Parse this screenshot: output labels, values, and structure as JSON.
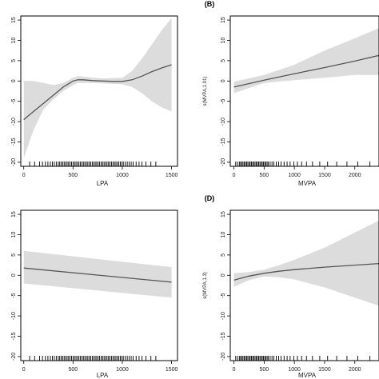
{
  "chart_data": [
    {
      "type": "line",
      "panel_label": "",
      "xlabel": "LPA",
      "ylabel": "",
      "xlim": [
        -30,
        1560
      ],
      "ylim": [
        -21,
        16
      ],
      "xticks": [
        0,
        500,
        1000,
        1500
      ],
      "yticks": [
        -20,
        -15,
        -10,
        -5,
        0,
        5,
        10,
        15
      ],
      "x": [
        0,
        100,
        200,
        300,
        400,
        500,
        550,
        600,
        700,
        800,
        900,
        1000,
        1100,
        1200,
        1300,
        1400,
        1500
      ],
      "y": [
        -9.5,
        -7.5,
        -5.5,
        -3.5,
        -1.5,
        0,
        0.3,
        0.3,
        0.1,
        0,
        -0.1,
        -0.1,
        0.3,
        1.2,
        2.3,
        3.2,
        4
      ],
      "lower": [
        -19,
        -12,
        -7,
        -4.5,
        -2.5,
        -1,
        -0.5,
        -0.5,
        -0.5,
        -0.6,
        -0.7,
        -0.8,
        -1.5,
        -3,
        -5,
        -6.5,
        -7.5
      ],
      "upper": [
        0,
        0,
        -0.5,
        -1,
        -0.5,
        0.8,
        1.2,
        1.1,
        0.8,
        0.6,
        0.7,
        0.8,
        2.5,
        5.5,
        9,
        12.5,
        15.5
      ],
      "rug": [
        60,
        110,
        160,
        190,
        220,
        245,
        270,
        290,
        310,
        330,
        350,
        365,
        380,
        395,
        410,
        425,
        440,
        455,
        470,
        485,
        500,
        515,
        530,
        545,
        560,
        575,
        590,
        605,
        620,
        635,
        650,
        665,
        680,
        695,
        710,
        725,
        740,
        755,
        770,
        785,
        800,
        815,
        830,
        845,
        860,
        875,
        890,
        905,
        920,
        935,
        950,
        965,
        980,
        995,
        1010,
        1030,
        1050,
        1070,
        1090,
        1110,
        1140,
        1170,
        1200,
        1240,
        1290,
        1340
      ]
    },
    {
      "type": "line",
      "panel_label": "(B)",
      "xlabel": "MVPA",
      "ylabel": "s(MVPA,1.01)",
      "xlim": [
        -60,
        2400
      ],
      "ylim": [
        -21,
        16
      ],
      "xticks": [
        0,
        500,
        1000,
        1500,
        2000
      ],
      "yticks": [
        -20,
        -15,
        -10,
        -5,
        0,
        5,
        10,
        15
      ],
      "x": [
        0,
        500,
        1000,
        1500,
        2000,
        2400
      ],
      "y": [
        -1.5,
        0.2,
        1.8,
        3.3,
        4.9,
        6.3
      ],
      "lower": [
        -3,
        -0.5,
        0.2,
        0.8,
        1.5,
        1.5
      ],
      "upper": [
        -0.2,
        1.5,
        4,
        7.5,
        10.5,
        13
      ],
      "rug": [
        30,
        60,
        90,
        110,
        130,
        150,
        170,
        190,
        210,
        230,
        250,
        270,
        290,
        310,
        330,
        350,
        370,
        390,
        410,
        430,
        450,
        470,
        490,
        510,
        530,
        550,
        570,
        600,
        630,
        660,
        700,
        740,
        780,
        830,
        880,
        930,
        990,
        1050,
        1120,
        1200,
        1300,
        1420,
        1550,
        1700,
        1870,
        2050,
        2250
      ]
    },
    {
      "type": "line",
      "panel_label": "",
      "xlabel": "LPA",
      "ylabel": "",
      "xlim": [
        -30,
        1560
      ],
      "ylim": [
        -21,
        16
      ],
      "xticks": [
        0,
        500,
        1000,
        1500
      ],
      "yticks": [
        -20,
        -15,
        -10,
        -5,
        0,
        5,
        10,
        15
      ],
      "x": [
        0,
        1500
      ],
      "y": [
        1.8,
        -1.7
      ],
      "lower": [
        -2,
        -5.5
      ],
      "upper": [
        6,
        2
      ],
      "rug": [
        60,
        110,
        160,
        190,
        220,
        245,
        270,
        290,
        310,
        330,
        350,
        365,
        380,
        395,
        410,
        425,
        440,
        455,
        470,
        485,
        500,
        515,
        530,
        545,
        560,
        575,
        590,
        605,
        620,
        635,
        650,
        665,
        680,
        695,
        710,
        725,
        740,
        755,
        770,
        785,
        800,
        815,
        830,
        845,
        860,
        875,
        890,
        905,
        920,
        935,
        950,
        965,
        980,
        995,
        1010,
        1030,
        1050,
        1070,
        1090,
        1110,
        1140,
        1170,
        1200,
        1240,
        1290,
        1340
      ]
    },
    {
      "type": "line",
      "panel_label": "(D)",
      "xlabel": "MVPA",
      "ylabel": "s(MVPA,1.3)",
      "xlim": [
        -60,
        2400
      ],
      "ylim": [
        -21,
        16
      ],
      "xticks": [
        0,
        500,
        1000,
        1500,
        2000
      ],
      "yticks": [
        -20,
        -15,
        -10,
        -5,
        0,
        5,
        10,
        15
      ],
      "x": [
        0,
        250,
        500,
        750,
        1000,
        1500,
        2000,
        2400
      ],
      "y": [
        -1.2,
        -0.2,
        0.5,
        1.0,
        1.4,
        2.0,
        2.5,
        2.9
      ],
      "lower": [
        -2.8,
        -1.2,
        -0.3,
        -0.5,
        -1.0,
        -3.0,
        -5.5,
        -7.5
      ],
      "upper": [
        0.5,
        0.8,
        1.4,
        2.5,
        3.8,
        6.8,
        10.5,
        13.5
      ],
      "rug": [
        30,
        60,
        90,
        110,
        130,
        150,
        170,
        190,
        210,
        230,
        250,
        270,
        290,
        310,
        330,
        350,
        370,
        390,
        410,
        430,
        450,
        470,
        490,
        510,
        530,
        550,
        570,
        600,
        630,
        660,
        700,
        740,
        780,
        830,
        880,
        930,
        990,
        1050,
        1120,
        1200,
        1300,
        1420,
        1550,
        1700,
        1870,
        2050,
        2250
      ]
    }
  ]
}
